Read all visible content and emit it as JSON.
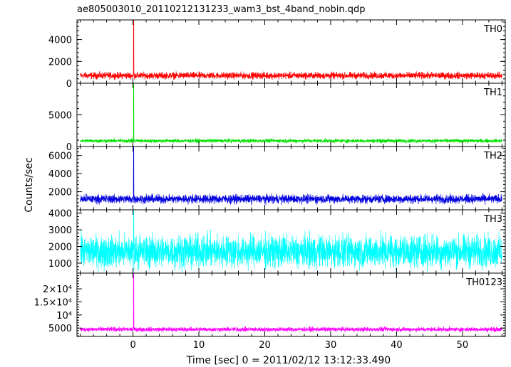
{
  "chart_data": {
    "type": "line",
    "title": "ae805003010_20110212131233_wam3_bst_4band_nobin.qdp",
    "xlabel": "Time [sec] 0 = 2011/02/12 13:12:33.490",
    "ylabel": "Counts/sec",
    "xlim": [
      -8.5,
      56.5
    ],
    "x_ticks": [
      0,
      10,
      20,
      30,
      40,
      50
    ],
    "x_tick_labels": [
      "0",
      "10",
      "20",
      "30",
      "40",
      "50"
    ],
    "x_data_range": [
      -8,
      56
    ],
    "grid": false,
    "panels": [
      {
        "name": "TH0",
        "color": "#ff0000",
        "ylim": [
          0,
          5800
        ],
        "y_ticks": [
          0,
          2000,
          4000
        ],
        "y_tick_labels": [
          "0",
          "2000",
          "4000"
        ],
        "baseline_mean": 700,
        "noise_amplitude": 250,
        "spike": {
          "x": 0.1,
          "y": 5800
        }
      },
      {
        "name": "TH1",
        "color": "#00e000",
        "ylim": [
          0,
          10000
        ],
        "y_ticks": [
          0,
          5000
        ],
        "y_tick_labels": [
          "0",
          "5000"
        ],
        "baseline_mean": 900,
        "noise_amplitude": 250,
        "spike": {
          "x": 0.1,
          "y": 10000
        }
      },
      {
        "name": "TH2",
        "color": "#0000e0",
        "ylim": [
          0,
          7000
        ],
        "y_ticks": [
          2000,
          4000,
          6000
        ],
        "y_tick_labels": [
          "2000",
          "4000",
          "6000"
        ],
        "baseline_mean": 1200,
        "noise_amplitude": 400,
        "spike": {
          "x": 0.1,
          "y": 7000
        }
      },
      {
        "name": "TH3",
        "color": "#00ffff",
        "ylim": [
          400,
          4200
        ],
        "y_ticks": [
          1000,
          2000,
          3000,
          4000
        ],
        "y_tick_labels": [
          "1000",
          "2000",
          "3000",
          "4000"
        ],
        "baseline_mean": 1700,
        "noise_amplitude": 800,
        "spike": {
          "x": 0.1,
          "y": 4200
        }
      },
      {
        "name": "TH0123",
        "color": "#ff00ff",
        "ylim": [
          1800,
          26000
        ],
        "y_ticks": [
          5000,
          10000,
          15000,
          20000
        ],
        "y_tick_labels": [
          "5000",
          "10⁴",
          "1.5×10⁴",
          "2×10⁴"
        ],
        "baseline_mean": 4500,
        "noise_amplitude": 700,
        "spike": {
          "x": 0.1,
          "y": 26000
        }
      }
    ]
  }
}
